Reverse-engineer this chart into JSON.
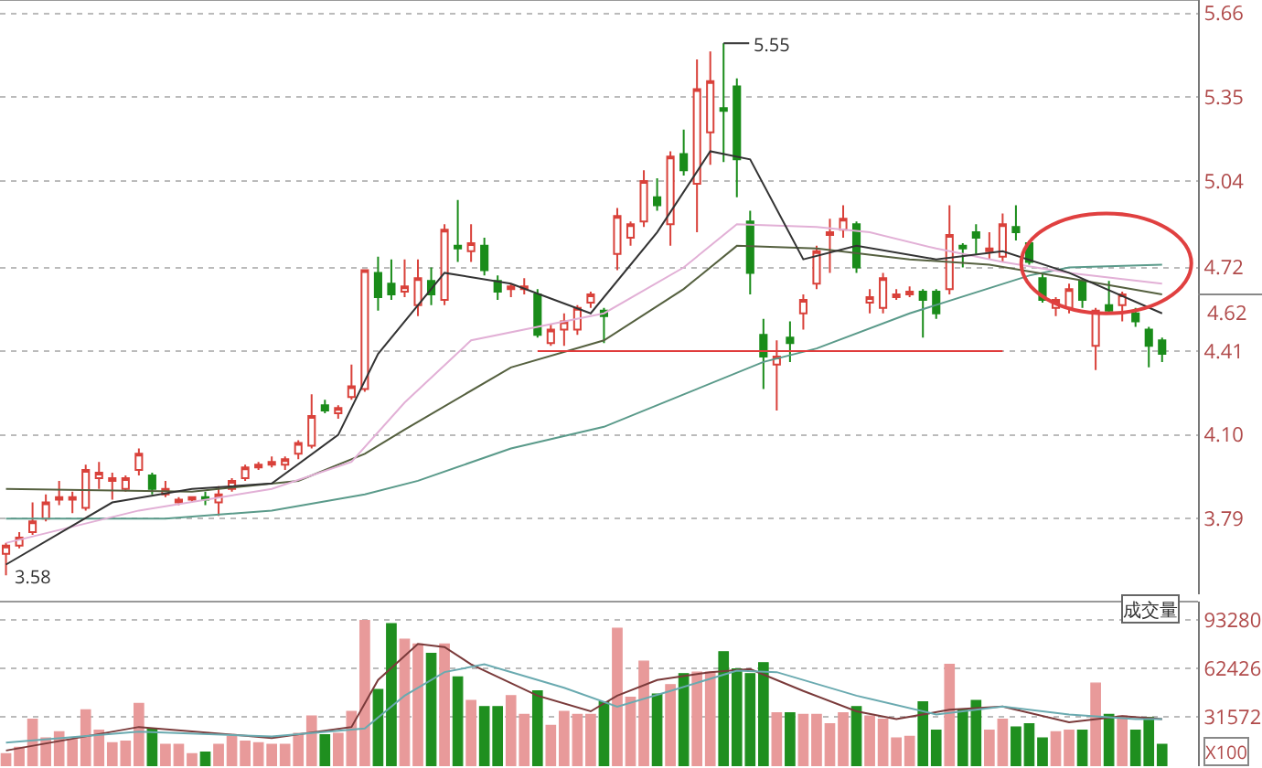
{
  "chart_data": [
    {
      "type": "candlestick",
      "categories": [
        null,
        null,
        null,
        null,
        null,
        null,
        null,
        null,
        null,
        null,
        null,
        null,
        null,
        null,
        null,
        null,
        null,
        null,
        null,
        null,
        null,
        null,
        null,
        null,
        null,
        null,
        null,
        null,
        null,
        null,
        null,
        null,
        null,
        null,
        null,
        null,
        null,
        null,
        null,
        null,
        null,
        null,
        null,
        null,
        null,
        null,
        null,
        null,
        null,
        null,
        null,
        null,
        null,
        null,
        null,
        null,
        null,
        null,
        null,
        null,
        null,
        null,
        null,
        null,
        null,
        null,
        null,
        null,
        null,
        null,
        null,
        null,
        null,
        null,
        null,
        null,
        null,
        null,
        null,
        null,
        null,
        null,
        null,
        null,
        null,
        null,
        null,
        null
      ],
      "ohlc": [
        [
          3.66,
          3.7,
          3.58,
          3.69
        ],
        [
          3.69,
          3.74,
          3.68,
          3.72
        ],
        [
          3.74,
          3.85,
          3.73,
          3.78
        ],
        [
          3.79,
          3.88,
          3.78,
          3.85
        ],
        [
          3.86,
          3.93,
          3.84,
          3.87
        ],
        [
          3.86,
          3.89,
          3.81,
          3.87
        ],
        [
          3.83,
          3.99,
          3.82,
          3.97
        ],
        [
          3.94,
          4.0,
          3.9,
          3.96
        ],
        [
          3.93,
          3.96,
          3.86,
          3.94
        ],
        [
          3.9,
          3.95,
          3.89,
          3.94
        ],
        [
          3.97,
          4.05,
          3.95,
          4.03
        ],
        [
          3.95,
          3.96,
          3.88,
          3.9
        ],
        [
          3.88,
          3.93,
          3.87,
          3.9
        ],
        [
          3.85,
          3.87,
          3.84,
          3.86
        ],
        [
          3.86,
          3.87,
          3.85,
          3.87
        ],
        [
          3.87,
          3.89,
          3.84,
          3.86
        ],
        [
          3.85,
          3.91,
          3.8,
          3.88
        ],
        [
          3.9,
          3.94,
          3.89,
          3.93
        ],
        [
          3.94,
          3.99,
          3.93,
          3.98
        ],
        [
          3.98,
          4.0,
          3.97,
          3.99
        ],
        [
          3.99,
          4.02,
          3.98,
          4.0
        ],
        [
          3.99,
          4.02,
          3.97,
          4.01
        ],
        [
          4.03,
          4.08,
          4.01,
          4.07
        ],
        [
          4.06,
          4.25,
          4.05,
          4.17
        ],
        [
          4.21,
          4.23,
          4.18,
          4.19
        ],
        [
          4.18,
          4.21,
          4.16,
          4.2
        ],
        [
          4.24,
          4.36,
          4.23,
          4.28
        ],
        [
          4.27,
          4.71,
          4.26,
          4.71
        ],
        [
          4.7,
          4.76,
          4.56,
          4.61
        ],
        [
          4.66,
          4.75,
          4.6,
          4.62
        ],
        [
          4.63,
          4.75,
          4.61,
          4.65
        ],
        [
          4.58,
          4.75,
          4.54,
          4.68
        ],
        [
          4.67,
          4.72,
          4.58,
          4.62
        ],
        [
          4.6,
          4.88,
          4.58,
          4.86
        ],
        [
          4.8,
          4.97,
          4.74,
          4.79
        ],
        [
          4.78,
          4.88,
          4.74,
          4.81
        ],
        [
          4.8,
          4.83,
          4.69,
          4.71
        ],
        [
          4.67,
          4.69,
          4.6,
          4.63
        ],
        [
          4.64,
          4.66,
          4.61,
          4.65
        ],
        [
          4.64,
          4.68,
          4.62,
          4.65
        ],
        [
          4.62,
          4.64,
          4.46,
          4.47
        ],
        [
          4.44,
          4.51,
          4.43,
          4.49
        ],
        [
          4.49,
          4.55,
          4.43,
          4.52
        ],
        [
          4.49,
          4.58,
          4.47,
          4.57
        ],
        [
          4.59,
          4.63,
          4.57,
          4.62
        ],
        [
          4.56,
          4.57,
          4.44,
          4.54
        ],
        [
          4.77,
          4.94,
          4.71,
          4.91
        ],
        [
          4.83,
          4.89,
          4.8,
          4.88
        ],
        [
          4.89,
          5.08,
          4.87,
          5.04
        ],
        [
          4.98,
          5.05,
          4.93,
          4.95
        ],
        [
          4.88,
          5.15,
          4.8,
          5.13
        ],
        [
          5.14,
          5.23,
          5.06,
          5.08
        ],
        [
          5.03,
          5.49,
          4.85,
          5.38
        ],
        [
          5.22,
          5.52,
          5.1,
          5.41
        ],
        [
          5.31,
          5.55,
          5.11,
          5.3
        ],
        [
          5.39,
          5.42,
          4.98,
          5.12
        ],
        [
          4.89,
          4.93,
          4.62,
          4.7
        ],
        [
          4.47,
          4.53,
          4.27,
          4.39
        ],
        [
          4.36,
          4.45,
          4.19,
          4.39
        ],
        [
          4.46,
          4.52,
          4.37,
          4.44
        ],
        [
          4.55,
          4.62,
          4.49,
          4.6
        ],
        [
          4.66,
          4.8,
          4.64,
          4.78
        ],
        [
          4.84,
          4.9,
          4.7,
          4.85
        ],
        [
          4.86,
          4.95,
          4.83,
          4.9
        ],
        [
          4.88,
          4.89,
          4.7,
          4.72
        ],
        [
          4.59,
          4.64,
          4.55,
          4.61
        ],
        [
          4.57,
          4.7,
          4.55,
          4.68
        ],
        [
          4.61,
          4.64,
          4.6,
          4.62
        ],
        [
          4.62,
          4.65,
          4.61,
          4.63
        ],
        [
          4.63,
          4.64,
          4.46,
          4.6
        ],
        [
          4.63,
          4.64,
          4.53,
          4.55
        ],
        [
          4.64,
          4.95,
          4.62,
          4.84
        ],
        [
          4.8,
          4.81,
          4.72,
          4.79
        ],
        [
          4.85,
          4.88,
          4.77,
          4.83
        ],
        [
          4.78,
          4.85,
          4.75,
          4.79
        ],
        [
          4.76,
          4.92,
          4.74,
          4.88
        ],
        [
          4.87,
          4.95,
          4.82,
          4.85
        ],
        [
          4.81,
          4.82,
          4.73,
          4.74
        ],
        [
          4.68,
          4.7,
          4.59,
          4.6
        ],
        [
          4.57,
          4.61,
          4.54,
          4.6
        ],
        [
          4.57,
          4.66,
          4.55,
          4.64
        ],
        [
          4.67,
          4.68,
          4.57,
          4.6
        ],
        [
          4.43,
          4.57,
          4.34,
          4.56
        ],
        [
          4.58,
          4.67,
          4.55,
          4.56
        ],
        [
          4.58,
          4.63,
          4.52,
          4.62
        ],
        [
          4.55,
          4.57,
          4.5,
          4.52
        ],
        [
          4.49,
          4.5,
          4.35,
          4.43
        ],
        [
          4.45,
          4.46,
          4.37,
          4.4
        ]
      ],
      "series": [
        {
          "type": "line",
          "color": "#5a9a8a",
          "values": [
            3.79,
            null,
            null,
            null,
            null,
            null,
            null,
            null,
            null,
            null,
            null,
            null,
            3.79,
            null,
            null,
            null,
            null,
            null,
            null,
            null,
            3.82,
            null,
            null,
            null,
            null,
            null,
            null,
            3.88,
            null,
            null,
            null,
            3.93,
            null,
            null,
            null,
            null,
            null,
            null,
            4.05,
            null,
            null,
            null,
            null,
            null,
            null,
            4.13,
            null,
            null,
            null,
            null,
            null,
            4.25,
            null,
            null,
            null,
            null,
            null,
            4.37,
            null,
            null,
            null,
            4.42,
            null,
            null,
            null,
            null,
            null,
            null,
            4.55,
            null,
            null,
            null,
            null,
            null,
            null,
            null,
            null,
            4.69,
            null,
            null,
            4.72,
            null,
            null,
            null,
            null,
            null,
            null,
            4.73
          ]
        },
        {
          "type": "line",
          "color": "#55603f",
          "values": [
            3.9,
            null,
            null,
            null,
            null,
            null,
            null,
            null,
            null,
            null,
            null,
            null,
            null,
            null,
            3.89,
            null,
            null,
            null,
            null,
            null,
            null,
            null,
            3.93,
            null,
            null,
            null,
            null,
            4.03,
            null,
            null,
            4.12,
            null,
            null,
            null,
            null,
            null,
            null,
            null,
            4.35,
            null,
            null,
            null,
            null,
            null,
            null,
            4.45,
            null,
            null,
            null,
            null,
            null,
            4.64,
            null,
            null,
            null,
            4.8,
            null,
            null,
            null,
            null,
            null,
            4.79,
            null,
            null,
            null,
            null,
            null,
            null,
            4.75,
            null,
            null,
            null,
            null,
            null,
            4.73,
            null,
            null,
            null,
            null,
            null,
            4.68,
            null,
            null,
            null,
            null,
            null,
            null,
            4.62
          ]
        },
        {
          "type": "line",
          "color": "#e2b0d6",
          "values": [
            3.7,
            null,
            null,
            null,
            null,
            null,
            null,
            null,
            null,
            null,
            3.82,
            null,
            null,
            null,
            null,
            null,
            null,
            null,
            null,
            null,
            3.9,
            null,
            null,
            null,
            null,
            null,
            4.0,
            null,
            null,
            null,
            4.22,
            null,
            null,
            null,
            null,
            4.45,
            null,
            null,
            null,
            null,
            null,
            null,
            null,
            null,
            null,
            4.55,
            null,
            null,
            null,
            null,
            null,
            4.72,
            null,
            null,
            null,
            4.88,
            null,
            null,
            null,
            null,
            null,
            4.87,
            null,
            null,
            null,
            4.85,
            null,
            null,
            null,
            null,
            4.79,
            null,
            null,
            null,
            null,
            4.74,
            null,
            null,
            null,
            null,
            4.7,
            null,
            null,
            null,
            null,
            null,
            null,
            4.66
          ]
        },
        {
          "type": "line",
          "color": "#333333",
          "values": [
            3.62,
            null,
            null,
            null,
            null,
            null,
            null,
            null,
            3.85,
            null,
            null,
            null,
            null,
            null,
            3.9,
            null,
            null,
            null,
            null,
            null,
            3.92,
            null,
            null,
            null,
            null,
            4.1,
            null,
            null,
            4.4,
            null,
            null,
            null,
            null,
            4.7,
            null,
            null,
            null,
            null,
            4.66,
            null,
            null,
            null,
            null,
            null,
            4.55,
            null,
            null,
            null,
            null,
            4.85,
            null,
            null,
            null,
            5.15,
            null,
            null,
            5.12,
            null,
            null,
            null,
            4.75,
            null,
            null,
            null,
            4.8,
            null,
            null,
            null,
            null,
            null,
            4.75,
            null,
            null,
            null,
            null,
            4.78,
            null,
            null,
            null,
            null,
            4.7,
            null,
            null,
            null,
            null,
            null,
            null,
            4.55
          ]
        },
        {
          "type": "line",
          "color": "#e03c3c",
          "values": [
            null,
            null,
            null,
            null,
            null,
            null,
            null,
            null,
            null,
            null,
            null,
            null,
            null,
            null,
            null,
            null,
            null,
            null,
            null,
            null,
            null,
            null,
            null,
            null,
            null,
            null,
            null,
            null,
            null,
            null,
            null,
            null,
            null,
            null,
            null,
            null,
            null,
            null,
            null,
            null,
            4.41,
            4.41,
            4.41,
            4.41,
            4.41,
            4.41,
            4.41,
            4.41,
            4.41,
            4.41,
            4.41,
            4.41,
            4.41,
            4.41,
            4.41,
            4.41,
            4.41,
            4.41,
            4.41,
            4.41,
            4.41,
            4.41,
            4.41,
            4.41,
            4.41,
            4.41,
            4.41,
            4.41,
            4.41,
            4.41,
            4.41,
            4.41,
            4.41,
            4.41,
            4.41,
            4.41,
            null,
            null,
            null,
            null,
            null,
            null,
            null,
            null,
            null,
            null,
            null,
            null
          ]
        }
      ],
      "ylim": [
        3.51,
        5.71
      ],
      "yticks": [
        3.79,
        {
          "value": 4.1,
          "label": "4.10"
        },
        4.41,
        4.72,
        5.04,
        5.35,
        5.66
      ],
      "grid": "y",
      "tick_labels": "y",
      "ref_lines": [
        {
          "axis": "y",
          "value": 4.62,
          "label": "4.62"
        }
      ],
      "annotations": [
        "5.55",
        "3.58"
      ]
    },
    {
      "type": "bar",
      "categories": [
        null,
        null,
        null,
        null,
        null,
        null,
        null,
        null,
        null,
        null,
        null,
        null,
        null,
        null,
        null,
        null,
        null,
        null,
        null,
        null,
        null,
        null,
        null,
        null,
        null,
        null,
        null,
        null,
        null,
        null,
        null,
        null,
        null,
        null,
        null,
        null,
        null,
        null,
        null,
        null,
        null,
        null,
        null,
        null,
        null,
        null,
        null,
        null,
        null,
        null,
        null,
        null,
        null,
        null,
        null,
        null,
        null,
        null,
        null,
        null,
        null,
        null,
        null,
        null,
        null,
        null,
        null,
        null,
        null,
        null,
        null,
        null,
        null,
        null,
        null,
        null,
        null,
        null,
        null,
        null,
        null,
        null,
        null,
        null,
        null,
        null,
        null,
        null
      ],
      "values": [
        8000,
        12000,
        30000,
        18000,
        22000,
        17000,
        36000,
        23000,
        15000,
        16000,
        40000,
        24000,
        14000,
        14000,
        8000,
        9000,
        14000,
        19000,
        16000,
        15000,
        14000,
        14000,
        21000,
        32000,
        20000,
        21000,
        35000,
        93000,
        49000,
        91000,
        81000,
        78000,
        72000,
        78000,
        57000,
        42000,
        38000,
        38000,
        45000,
        33000,
        48000,
        26000,
        35000,
        33000,
        33000,
        41000,
        88000,
        44000,
        67000,
        46000,
        52000,
        59000,
        60000,
        60000,
        73000,
        62000,
        59000,
        66000,
        34000,
        34000,
        33000,
        33000,
        27000,
        34000,
        38000,
        32000,
        30000,
        18000,
        19000,
        41000,
        23000,
        65000,
        36000,
        42000,
        23000,
        30000,
        25000,
        27000,
        18000,
        22000,
        23000,
        23000,
        53000,
        33000,
        32000,
        23000,
        31000,
        14000
      ],
      "colors": [
        "#e89a9a",
        "#e89a9a",
        "#e89a9a",
        "#e89a9a",
        "#e89a9a",
        "#e89a9a",
        "#e89a9a",
        "#e89a9a",
        "#e89a9a",
        "#e89a9a",
        "#e89a9a",
        "#1f8f1f",
        "#e89a9a",
        "#e89a9a",
        "#e89a9a",
        "#1f8f1f",
        "#e89a9a",
        "#e89a9a",
        "#e89a9a",
        "#e89a9a",
        "#e89a9a",
        "#e89a9a",
        "#e89a9a",
        "#e89a9a",
        "#1f8f1f",
        "#e89a9a",
        "#e89a9a",
        "#e89a9a",
        "#1f8f1f",
        "#1f8f1f",
        "#e89a9a",
        "#e89a9a",
        "#1f8f1f",
        "#e89a9a",
        "#1f8f1f",
        "#e89a9a",
        "#1f8f1f",
        "#1f8f1f",
        "#e89a9a",
        "#e89a9a",
        "#1f8f1f",
        "#e89a9a",
        "#e89a9a",
        "#e89a9a",
        "#e89a9a",
        "#1f8f1f",
        "#e89a9a",
        "#e89a9a",
        "#e89a9a",
        "#1f8f1f",
        "#e89a9a",
        "#1f8f1f",
        "#e89a9a",
        "#e89a9a",
        "#1f8f1f",
        "#1f8f1f",
        "#1f8f1f",
        "#1f8f1f",
        "#e89a9a",
        "#1f8f1f",
        "#e89a9a",
        "#e89a9a",
        "#e89a9a",
        "#e89a9a",
        "#1f8f1f",
        "#e89a9a",
        "#e89a9a",
        "#e89a9a",
        "#e89a9a",
        "#1f8f1f",
        "#1f8f1f",
        "#e89a9a",
        "#1f8f1f",
        "#1f8f1f",
        "#e89a9a",
        "#e89a9a",
        "#1f8f1f",
        "#1f8f1f",
        "#1f8f1f",
        "#e89a9a",
        "#e89a9a",
        "#1f8f1f",
        "#e89a9a",
        "#1f8f1f",
        "#e89a9a",
        "#1f8f1f",
        "#1f8f1f",
        "#1f8f1f"
      ],
      "series": [
        {
          "type": "line",
          "color": "#7a3a3a",
          "values": [
            10000,
            null,
            null,
            null,
            null,
            null,
            null,
            null,
            null,
            null,
            25000,
            null,
            null,
            null,
            null,
            null,
            null,
            null,
            null,
            null,
            18000,
            null,
            null,
            null,
            null,
            null,
            25000,
            null,
            55000,
            null,
            null,
            78000,
            null,
            76000,
            null,
            65000,
            null,
            null,
            null,
            null,
            45000,
            null,
            null,
            null,
            35000,
            null,
            45000,
            null,
            null,
            55000,
            null,
            null,
            null,
            60000,
            null,
            null,
            62000,
            null,
            null,
            null,
            48000,
            null,
            null,
            null,
            35000,
            null,
            null,
            30000,
            null,
            null,
            null,
            36000,
            null,
            null,
            null,
            38000,
            null,
            null,
            null,
            null,
            28000,
            null,
            null,
            null,
            32000,
            null,
            null,
            30000
          ]
        },
        {
          "type": "line",
          "color": "#6aaab0",
          "values": [
            15000,
            null,
            null,
            null,
            null,
            null,
            null,
            null,
            null,
            null,
            22000,
            null,
            null,
            null,
            null,
            null,
            null,
            null,
            null,
            null,
            19000,
            null,
            null,
            null,
            null,
            null,
            null,
            24000,
            null,
            null,
            45000,
            null,
            null,
            60000,
            null,
            null,
            65000,
            null,
            null,
            null,
            null,
            null,
            50000,
            null,
            null,
            null,
            38000,
            null,
            null,
            null,
            48000,
            null,
            null,
            null,
            null,
            61000,
            null,
            null,
            60000,
            null,
            null,
            null,
            null,
            null,
            45000,
            null,
            null,
            null,
            null,
            null,
            33000,
            null,
            null,
            null,
            null,
            38000,
            null,
            null,
            null,
            null,
            33000,
            null,
            null,
            null,
            null,
            30000,
            null,
            30000
          ]
        }
      ],
      "ylim": [
        0,
        105000
      ],
      "yticks": [
        31572,
        62426,
        93280
      ],
      "grid": "y",
      "tick_labels": "y",
      "annotations": [
        "成交量",
        "X100"
      ]
    }
  ]
}
